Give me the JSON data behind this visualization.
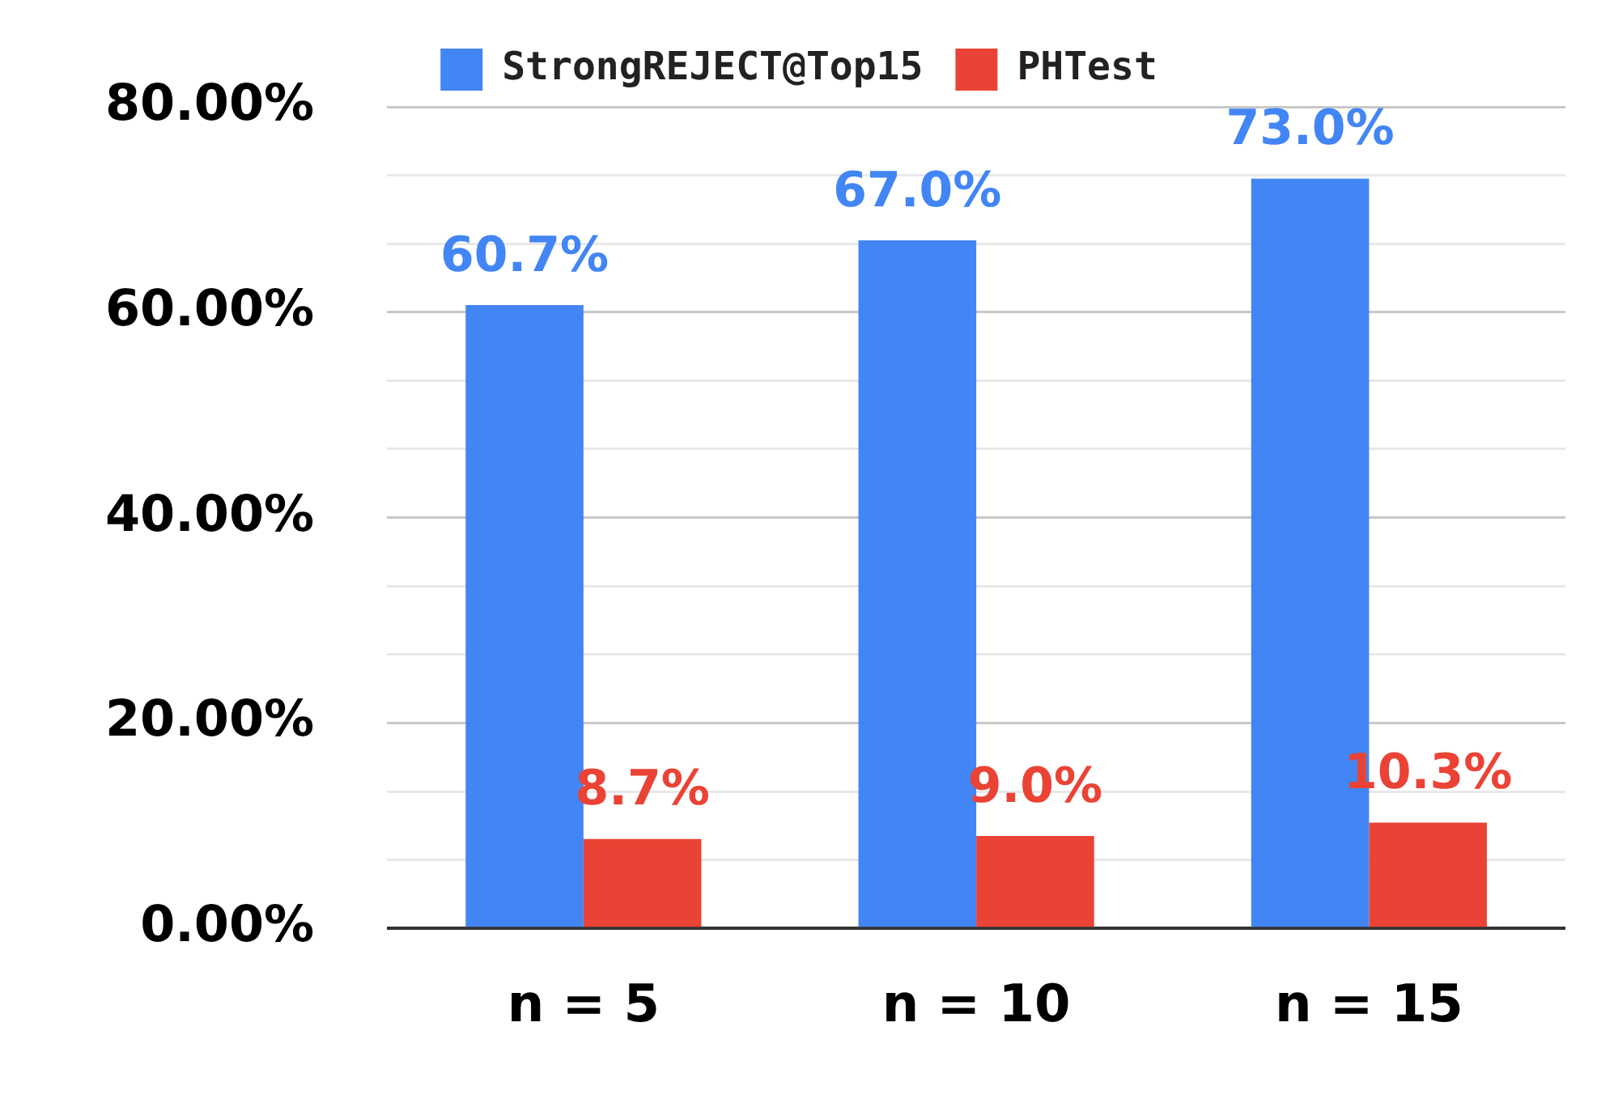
{
  "chart_data": {
    "type": "bar",
    "categories": [
      "n = 5",
      "n = 10",
      "n = 15"
    ],
    "series": [
      {
        "name": "StrongREJECT@Top15",
        "color": "#4285f4",
        "values": [
          60.7,
          67.0,
          73.0
        ],
        "value_labels": [
          "60.7%",
          "67.0%",
          "73.0%"
        ]
      },
      {
        "name": "PHTest",
        "color": "#ea4335",
        "values": [
          8.7,
          9.0,
          10.3
        ],
        "value_labels": [
          "8.7%",
          "9.0%",
          "10.3%"
        ]
      }
    ],
    "ylim": [
      0,
      80
    ],
    "yticks": [
      {
        "value": 0,
        "label": "0.00%"
      },
      {
        "value": 6.67,
        "label": null
      },
      {
        "value": 13.33,
        "label": null
      },
      {
        "value": 20,
        "label": "20.00%"
      },
      {
        "value": 26.67,
        "label": null
      },
      {
        "value": 33.33,
        "label": null
      },
      {
        "value": 40,
        "label": "40.00%"
      },
      {
        "value": 46.67,
        "label": null
      },
      {
        "value": 53.33,
        "label": null
      },
      {
        "value": 60,
        "label": "60.00%"
      },
      {
        "value": 66.67,
        "label": null
      },
      {
        "value": 73.33,
        "label": null
      },
      {
        "value": 80,
        "label": "80.00%"
      }
    ],
    "grid": "y",
    "legend": "top"
  }
}
